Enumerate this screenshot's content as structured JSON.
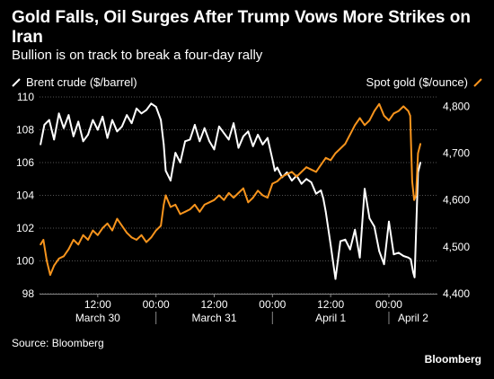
{
  "title": "Gold Falls, Oil Surges After Trump Vows More Strikes on Iran",
  "subtitle": "Bullion is on track to break a four-day rally",
  "source": "Source: Bloomberg",
  "brand": "Bloomberg",
  "colors": {
    "background": "#000000",
    "brent": "#ffffff",
    "gold": "#f7941d",
    "grid": "#555555"
  },
  "legend": {
    "brent_label": "Brent crude ($/barrel)",
    "gold_label": "Spot gold ($/ounce)",
    "placement": "top"
  },
  "chart_data": {
    "type": "line",
    "title": "Gold Falls, Oil Surges After Trump Vows More Strikes on Iran",
    "subtitle": "Bullion is on track to break a four-day rally",
    "x_ticks": [
      "12:00",
      "00:00",
      "12:00",
      "00:00",
      "12:00",
      "00:00"
    ],
    "x_tick_hours": [
      12,
      24,
      36,
      48,
      60,
      72
    ],
    "x_groups": [
      {
        "label": "March 30",
        "start": 0,
        "end": 24
      },
      {
        "label": "March 31",
        "start": 24,
        "end": 48
      },
      {
        "label": "April 1",
        "start": 48,
        "end": 72
      },
      {
        "label": "April 2",
        "start": 72,
        "end": 82
      }
    ],
    "x_range": [
      0,
      82
    ],
    "y_left": {
      "label": "Brent crude ($/barrel)",
      "range": [
        98,
        110
      ],
      "ticks": [
        98,
        100,
        102,
        104,
        106,
        108,
        110
      ]
    },
    "y_right": {
      "label": "Spot gold ($/ounce)",
      "range": [
        4400,
        4820
      ],
      "ticks": [
        4400,
        4500,
        4600,
        4700,
        4800
      ],
      "tick_labels": [
        "4,400",
        "4,500",
        "4,600",
        "4,700",
        "4,800"
      ]
    },
    "grid": "horizontal",
    "series": [
      {
        "name": "Brent crude ($/barrel)",
        "axis": "left",
        "hours": [
          0.2,
          1,
          2,
          3,
          4,
          5,
          6,
          7,
          8,
          9,
          10,
          11,
          12,
          13,
          14,
          15,
          16,
          17,
          18,
          19,
          20,
          21,
          22,
          23,
          24,
          25,
          25.6,
          26,
          27,
          28,
          29,
          30,
          31,
          32,
          33,
          34,
          35,
          36,
          37,
          38,
          39,
          40,
          41,
          42,
          43,
          44,
          45,
          46,
          47,
          48,
          48.5,
          49,
          50,
          51,
          52,
          53,
          54,
          55,
          56,
          57,
          58,
          58.5,
          59,
          60,
          61,
          62,
          63,
          64,
          65,
          66,
          67,
          68,
          69,
          70,
          71,
          72,
          73,
          74,
          75,
          76,
          76.5,
          77,
          77.3,
          78,
          78.5
        ],
        "values": [
          107.1,
          108.3,
          108.6,
          107.4,
          109.0,
          108.1,
          108.9,
          107.6,
          108.5,
          107.3,
          107.7,
          108.6,
          108.0,
          108.8,
          107.5,
          108.6,
          107.9,
          108.2,
          108.9,
          108.4,
          109.3,
          109.0,
          109.2,
          109.6,
          109.4,
          108.6,
          107.1,
          105.5,
          104.9,
          106.6,
          106.0,
          107.3,
          107.4,
          108.3,
          107.3,
          108.1,
          107.3,
          106.8,
          108.2,
          107.8,
          107.4,
          108.4,
          106.9,
          107.6,
          107.9,
          107.0,
          107.7,
          107.1,
          107.5,
          106.2,
          105.5,
          105.7,
          105.1,
          105.4,
          104.9,
          105.2,
          104.7,
          105.0,
          104.8,
          104.1,
          104.3,
          103.8,
          103.0,
          101.0,
          98.9,
          101.2,
          101.3,
          100.7,
          101.9,
          100.2,
          104.4,
          102.6,
          102.1,
          100.6,
          99.8,
          102.4,
          100.4,
          100.5,
          100.3,
          100.2,
          100.1,
          99.3,
          99.0,
          105.4,
          106.0
        ]
      },
      {
        "name": "Spot gold ($/ounce)",
        "axis": "right",
        "hours": [
          0.2,
          0.8,
          1.5,
          2.2,
          3,
          4,
          5,
          6,
          7,
          8,
          9,
          10,
          11,
          12,
          13,
          14,
          15,
          16,
          17,
          18,
          19,
          20,
          21,
          22,
          23,
          24,
          25,
          25.6,
          26,
          27,
          28,
          29,
          30,
          31,
          32,
          33,
          34,
          35,
          36,
          37,
          38,
          39,
          40,
          41,
          42,
          43,
          44,
          45,
          46,
          47,
          48,
          49,
          50,
          51,
          52,
          53,
          54,
          55,
          56,
          57,
          58,
          59,
          60,
          61,
          62,
          63,
          64,
          65,
          66,
          67,
          68,
          69,
          70,
          71,
          72,
          73,
          74,
          75,
          76,
          76.4,
          76.8,
          77.2,
          77.6,
          78,
          78.5
        ],
        "values": [
          4505,
          4515,
          4470,
          4440,
          4460,
          4475,
          4480,
          4495,
          4515,
          4505,
          4525,
          4515,
          4535,
          4525,
          4540,
          4550,
          4535,
          4560,
          4545,
          4530,
          4520,
          4515,
          4525,
          4510,
          4520,
          4535,
          4545,
          4590,
          4610,
          4585,
          4590,
          4570,
          4575,
          4580,
          4590,
          4575,
          4590,
          4595,
          4600,
          4610,
          4600,
          4615,
          4605,
          4615,
          4625,
          4595,
          4605,
          4620,
          4610,
          4605,
          4635,
          4640,
          4650,
          4655,
          4660,
          4650,
          4660,
          4670,
          4665,
          4660,
          4675,
          4690,
          4685,
          4700,
          4710,
          4720,
          4740,
          4760,
          4775,
          4760,
          4770,
          4790,
          4805,
          4780,
          4770,
          4785,
          4790,
          4800,
          4790,
          4780,
          4640,
          4600,
          4610,
          4700,
          4720
        ]
      }
    ]
  }
}
